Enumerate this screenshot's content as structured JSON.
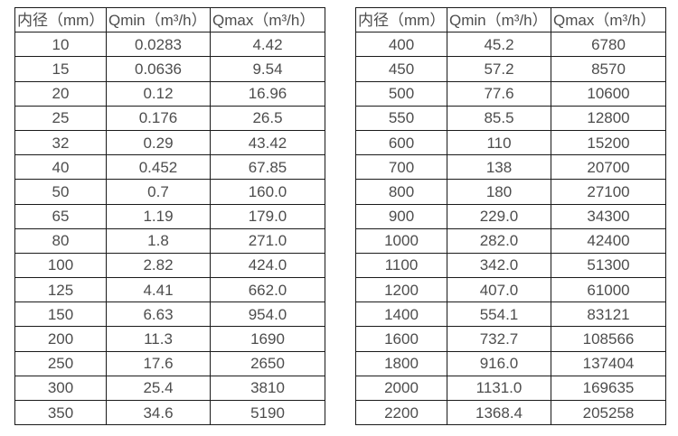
{
  "page": {
    "background_color": "#ffffff",
    "text_color": "#4d4d4d",
    "border_color": "#1a1a1a"
  },
  "tables": [
    {
      "headers": [
        "内径（mm）",
        "Qmin（m³/h）",
        "Qmax（m³/h）"
      ],
      "rows": [
        [
          "10",
          "0.0283",
          "4.42"
        ],
        [
          "15",
          "0.0636",
          "9.54"
        ],
        [
          "20",
          "0.12",
          "16.96"
        ],
        [
          "25",
          "0.176",
          "26.5"
        ],
        [
          "32",
          "0.29",
          "43.42"
        ],
        [
          "40",
          "0.452",
          "67.85"
        ],
        [
          "50",
          "0.7",
          "160.0"
        ],
        [
          "65",
          "1.19",
          "179.0"
        ],
        [
          "80",
          "1.8",
          "271.0"
        ],
        [
          "100",
          "2.82",
          "424.0"
        ],
        [
          "125",
          "4.41",
          "662.0"
        ],
        [
          "150",
          "6.63",
          "954.0"
        ],
        [
          "200",
          "11.3",
          "1690"
        ],
        [
          "250",
          "17.6",
          "2650"
        ],
        [
          "300",
          "25.4",
          "3810"
        ],
        [
          "350",
          "34.6",
          "5190"
        ]
      ]
    },
    {
      "headers": [
        "内径（mm）",
        "Qmin（m³/h）",
        "Qmax（m³/h）"
      ],
      "rows": [
        [
          "400",
          "45.2",
          "6780"
        ],
        [
          "450",
          "57.2",
          "8570"
        ],
        [
          "500",
          "77.6",
          "10600"
        ],
        [
          "550",
          "85.5",
          "12800"
        ],
        [
          "600",
          "110",
          "15200"
        ],
        [
          "700",
          "138",
          "20700"
        ],
        [
          "800",
          "180",
          "27100"
        ],
        [
          "900",
          "229.0",
          "34300"
        ],
        [
          "1000",
          "282.0",
          "42400"
        ],
        [
          "1100",
          "342.0",
          "51300"
        ],
        [
          "1200",
          "407.0",
          "61000"
        ],
        [
          "1400",
          "554.1",
          "83121"
        ],
        [
          "1600",
          "732.7",
          "108566"
        ],
        [
          "1800",
          "916.0",
          "137404"
        ],
        [
          "2000",
          "1131.0",
          "169635"
        ],
        [
          "2200",
          "1368.4",
          "205258"
        ]
      ]
    }
  ]
}
